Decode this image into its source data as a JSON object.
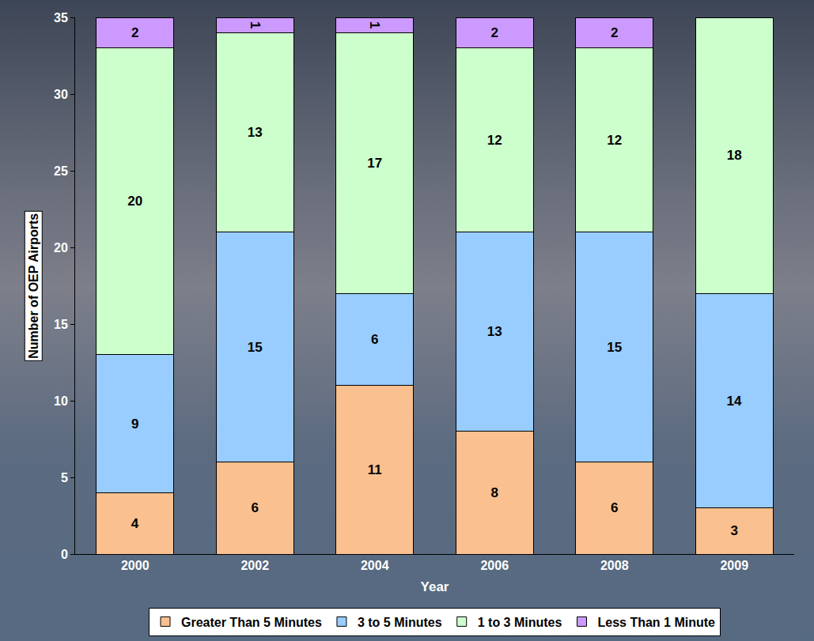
{
  "chart_data": {
    "type": "bar",
    "x_label": "Year",
    "y_label": "Number of OEP Airports",
    "categories": [
      "2000",
      "2002",
      "2004",
      "2006",
      "2008",
      "2009"
    ],
    "series": [
      {
        "name": "Greater Than 5 Minutes",
        "color": "#FAC08F",
        "values": [
          4,
          6,
          11,
          8,
          6,
          3
        ]
      },
      {
        "name": "3 to 5 Minutes",
        "color": "#99CCFF",
        "values": [
          9,
          15,
          6,
          13,
          15,
          14
        ]
      },
      {
        "name": "1 to 3 Minutes",
        "color": "#CCFFCC",
        "values": [
          20,
          13,
          17,
          12,
          12,
          18
        ]
      },
      {
        "name": "Less Than 1 Minute",
        "color": "#CC99FF",
        "values": [
          2,
          1,
          1,
          2,
          2,
          null
        ]
      }
    ],
    "ylim": [
      0,
      35
    ],
    "yticks": [
      0,
      5,
      10,
      15,
      20,
      25,
      30,
      35
    ],
    "stacked": true,
    "data_labels": true,
    "legend": "bottom",
    "grid": false
  }
}
